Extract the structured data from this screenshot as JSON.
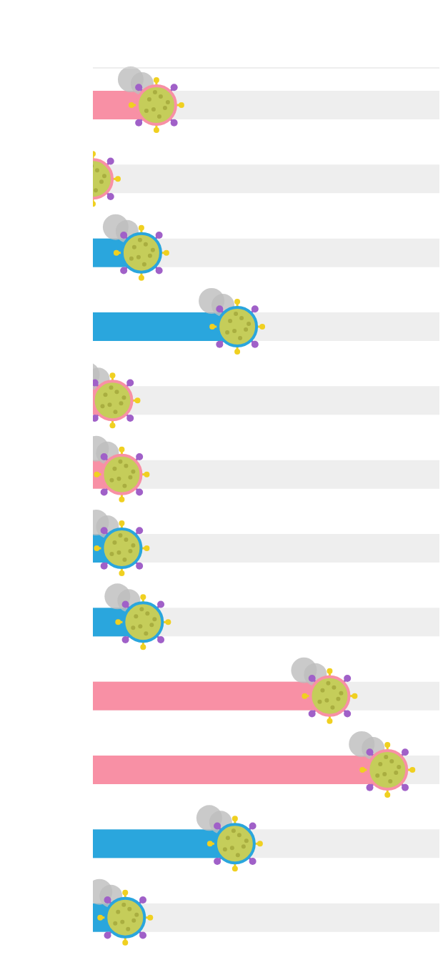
{
  "chart_data": {
    "type": "bar",
    "orientation": "horizontal",
    "categories": [
      null,
      null,
      null,
      null,
      null,
      null,
      null,
      null,
      null,
      null,
      null,
      null
    ],
    "values": [
      1.1,
      0.0,
      0.84,
      2.5,
      0.34,
      0.5,
      0.5,
      0.87,
      4.1,
      5.1,
      2.46,
      0.56
    ],
    "colors": [
      "#f890a5",
      "#f890a5",
      "#2aa6dd",
      "#2aa6dd",
      "#f890a5",
      "#f890a5",
      "#2aa6dd",
      "#2aa6dd",
      "#f890a5",
      "#f890a5",
      "#2aa6dd",
      "#2aa6dd"
    ],
    "xlim": [
      0,
      6
    ],
    "xticks": [
      0,
      1,
      2,
      3,
      4,
      5,
      6
    ],
    "grid": false,
    "tick_labels": false
  }
}
